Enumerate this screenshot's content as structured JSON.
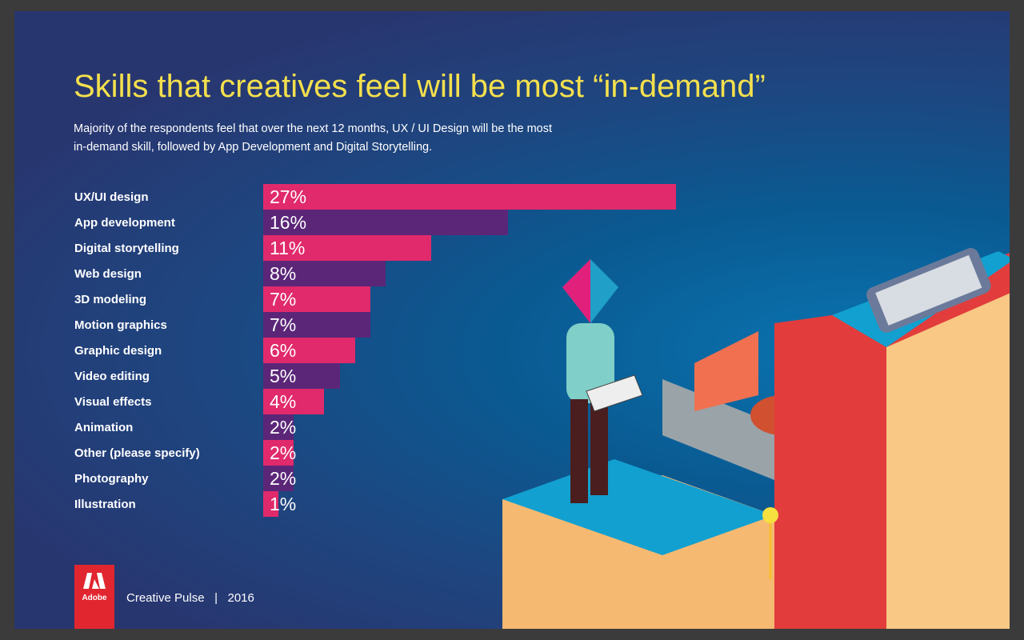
{
  "title": "Skills that creatives feel will be most “in-demand”",
  "subtitle": "Majority of the respondents feel that over the next 12 months, UX / UI Design will be the most in-demand skill, followed by App Development and Digital Storytelling.",
  "footer": {
    "logo_text": "Adobe",
    "brand": "Creative Pulse",
    "separator": "|",
    "year": "2016"
  },
  "colors": {
    "pink": "#e02a6b",
    "purple": "#5b2678",
    "title": "#f4e04d",
    "background": "#283670"
  },
  "chart_data": {
    "type": "bar",
    "orientation": "horizontal",
    "categories": [
      "UX/UI design",
      "App development",
      "Digital storytelling",
      "Web design",
      "3D modeling",
      "Motion graphics",
      "Graphic design",
      "Video editing",
      "Visual effects",
      "Animation",
      "Other (please specify)",
      "Photography",
      "Illustration"
    ],
    "values": [
      27,
      16,
      11,
      8,
      7,
      7,
      6,
      5,
      4,
      2,
      2,
      2,
      1
    ],
    "value_labels": [
      "27%",
      "16%",
      "11%",
      "8%",
      "7%",
      "7%",
      "6%",
      "5%",
      "4%",
      "2%",
      "2%",
      "2%",
      "1%"
    ],
    "unit": "%",
    "bar_colors_alternating": [
      "#e02a6b",
      "#5b2678"
    ],
    "grid": false
  }
}
